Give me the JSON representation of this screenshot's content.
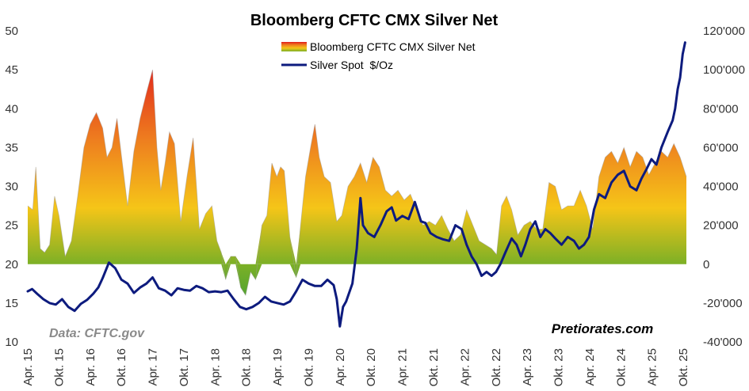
{
  "chart_data": {
    "type": "area",
    "title": "Bloomberg CFTC CMX Silver Net",
    "xlabel": "",
    "ylabel_left": "",
    "ylabel_right": "",
    "source": "Data: CFTC.gov",
    "brand": "Pretiorates.com",
    "legend_position": "top-center",
    "grid": false,
    "x_range": [
      2015.25,
      2025.8
    ],
    "left_axis": {
      "min": 10,
      "max": 50,
      "step": 5,
      "tick_labels": [
        "10",
        "15",
        "20",
        "25",
        "30",
        "35",
        "40",
        "45",
        "50"
      ]
    },
    "right_axis": {
      "min": -40000,
      "max": 120000,
      "step": 20000,
      "tick_labels": [
        "-40'000",
        "-20'000",
        "0",
        "20'000",
        "40'000",
        "60'000",
        "80'000",
        "100'000",
        "120'000"
      ]
    },
    "categories": [
      "Apr. 15",
      "Okt. 15",
      "Apr. 16",
      "Okt. 16",
      "Apr. 17",
      "Okt. 17",
      "Apr. 18",
      "Okt. 18",
      "Apr. 19",
      "Okt. 19",
      "Apr. 20",
      "Okt. 20",
      "Apr. 21",
      "Okt. 21",
      "Apr. 22",
      "Okt. 22",
      "Apr. 23",
      "Okt. 23",
      "Apr. 24",
      "Okt. 24",
      "Apr. 25",
      "Okt. 25"
    ],
    "category_positions": [
      2015.25,
      2015.75,
      2016.25,
      2016.75,
      2017.25,
      2017.75,
      2018.25,
      2018.75,
      2019.25,
      2019.75,
      2020.25,
      2020.75,
      2021.25,
      2021.75,
      2022.25,
      2022.75,
      2023.25,
      2023.75,
      2024.25,
      2024.75,
      2025.25,
      2025.75
    ],
    "series": [
      {
        "name": "Bloomberg CFTC CMX Silver Net",
        "type": "area",
        "axis": "right",
        "colors": [
          "#7cb026",
          "#f5c518",
          "#ee7d1f",
          "#e01b1b"
        ],
        "x": [
          2015.25,
          2015.33,
          2015.38,
          2015.45,
          2015.52,
          2015.6,
          2015.68,
          2015.75,
          2015.85,
          2015.95,
          2016.05,
          2016.15,
          2016.25,
          2016.35,
          2016.45,
          2016.52,
          2016.6,
          2016.68,
          2016.75,
          2016.85,
          2016.95,
          2017.05,
          2017.15,
          2017.25,
          2017.32,
          2017.38,
          2017.45,
          2017.52,
          2017.6,
          2017.7,
          2017.8,
          2017.9,
          2018.0,
          2018.1,
          2018.2,
          2018.28,
          2018.35,
          2018.42,
          2018.5,
          2018.58,
          2018.66,
          2018.74,
          2018.82,
          2018.9,
          2019.0,
          2019.08,
          2019.16,
          2019.24,
          2019.3,
          2019.36,
          2019.45,
          2019.55,
          2019.62,
          2019.7,
          2019.78,
          2019.85,
          2019.92,
          2020.0,
          2020.1,
          2020.2,
          2020.28,
          2020.38,
          2020.48,
          2020.58,
          2020.68,
          2020.78,
          2020.88,
          2020.98,
          2021.08,
          2021.18,
          2021.28,
          2021.38,
          2021.48,
          2021.58,
          2021.68,
          2021.78,
          2021.88,
          2021.98,
          2022.08,
          2022.18,
          2022.28,
          2022.38,
          2022.48,
          2022.58,
          2022.68,
          2022.76,
          2022.84,
          2022.92,
          2023.0,
          2023.1,
          2023.2,
          2023.3,
          2023.4,
          2023.5,
          2023.6,
          2023.7,
          2023.8,
          2023.9,
          2024.0,
          2024.1,
          2024.2,
          2024.3,
          2024.4,
          2024.5,
          2024.6,
          2024.7,
          2024.8,
          2024.9,
          2025.0,
          2025.1,
          2025.2,
          2025.3,
          2025.4,
          2025.5,
          2025.6,
          2025.7,
          2025.8
        ],
        "values": [
          30000,
          28000,
          50000,
          8000,
          6000,
          10000,
          35000,
          25000,
          4000,
          12000,
          35000,
          60000,
          72000,
          78000,
          70000,
          55000,
          60000,
          75000,
          56000,
          30000,
          58000,
          75000,
          88000,
          100000,
          60000,
          38000,
          52000,
          68000,
          62000,
          22000,
          45000,
          65000,
          18000,
          26000,
          30000,
          12000,
          6000,
          -8000,
          4000,
          4000,
          -12000,
          -16000,
          -4000,
          -8000,
          20000,
          25000,
          52000,
          45000,
          50000,
          48000,
          14000,
          -7000,
          20000,
          45000,
          60000,
          72000,
          55000,
          45000,
          42000,
          22000,
          25000,
          40000,
          45000,
          52000,
          42000,
          55000,
          50000,
          38000,
          35000,
          38000,
          33000,
          36000,
          28000,
          20000,
          22000,
          20000,
          25000,
          18000,
          12000,
          15000,
          28000,
          20000,
          12000,
          10000,
          8000,
          5000,
          30000,
          35000,
          28000,
          15000,
          20000,
          22000,
          18000,
          18000,
          42000,
          40000,
          28000,
          30000,
          30000,
          38000,
          30000,
          18000,
          45000,
          55000,
          58000,
          52000,
          60000,
          50000,
          58000,
          55000,
          46000,
          52000,
          58000,
          55000,
          62000,
          55000,
          45000
        ]
      },
      {
        "name": "Silver Spot  $/Oz",
        "type": "line",
        "axis": "left",
        "color": "#0d1b7e",
        "x": [
          2015.25,
          2015.32,
          2015.4,
          2015.5,
          2015.6,
          2015.7,
          2015.8,
          2015.9,
          2016.0,
          2016.1,
          2016.2,
          2016.3,
          2016.38,
          2016.45,
          2016.55,
          2016.65,
          2016.75,
          2016.85,
          2016.95,
          2017.05,
          2017.15,
          2017.25,
          2017.35,
          2017.45,
          2017.55,
          2017.65,
          2017.75,
          2017.85,
          2017.95,
          2018.05,
          2018.15,
          2018.25,
          2018.35,
          2018.45,
          2018.55,
          2018.65,
          2018.75,
          2018.85,
          2018.95,
          2019.05,
          2019.15,
          2019.25,
          2019.35,
          2019.45,
          2019.55,
          2019.65,
          2019.75,
          2019.85,
          2019.95,
          2020.05,
          2020.15,
          2020.2,
          2020.25,
          2020.3,
          2020.35,
          2020.45,
          2020.52,
          2020.58,
          2020.62,
          2020.7,
          2020.8,
          2020.9,
          2021.0,
          2021.08,
          2021.15,
          2021.25,
          2021.35,
          2021.45,
          2021.55,
          2021.62,
          2021.7,
          2021.8,
          2021.9,
          2022.0,
          2022.1,
          2022.2,
          2022.28,
          2022.36,
          2022.44,
          2022.52,
          2022.6,
          2022.68,
          2022.75,
          2022.82,
          2022.9,
          2023.0,
          2023.08,
          2023.15,
          2023.22,
          2023.3,
          2023.38,
          2023.46,
          2023.54,
          2023.62,
          2023.7,
          2023.8,
          2023.9,
          2024.0,
          2024.08,
          2024.16,
          2024.24,
          2024.32,
          2024.4,
          2024.5,
          2024.6,
          2024.7,
          2024.8,
          2024.9,
          2025.0,
          2025.08,
          2025.16,
          2025.24,
          2025.32,
          2025.4,
          2025.5,
          2025.58,
          2025.62,
          2025.66,
          2025.7,
          2025.74,
          2025.78
        ],
        "values": [
          16.5,
          16.8,
          16.2,
          15.5,
          15.0,
          14.8,
          15.5,
          14.5,
          14.0,
          14.9,
          15.4,
          16.2,
          17.0,
          18.2,
          20.2,
          19.5,
          18.0,
          17.5,
          16.3,
          17.0,
          17.5,
          18.3,
          16.9,
          16.6,
          16.0,
          16.9,
          16.7,
          16.6,
          17.2,
          16.9,
          16.4,
          16.5,
          16.4,
          16.6,
          15.5,
          14.5,
          14.2,
          14.5,
          15.0,
          15.8,
          15.2,
          15.0,
          14.8,
          15.2,
          16.5,
          18.0,
          17.5,
          17.2,
          17.2,
          18.0,
          17.3,
          15.5,
          12.0,
          14.5,
          15.2,
          17.5,
          22.0,
          28.5,
          25.0,
          24.0,
          23.5,
          25.0,
          26.8,
          27.3,
          25.6,
          26.2,
          25.8,
          28.0,
          25.5,
          25.3,
          24.0,
          23.5,
          23.2,
          23.0,
          25.0,
          24.5,
          22.5,
          21.0,
          20.0,
          18.5,
          19.0,
          18.5,
          19.0,
          20.0,
          21.5,
          23.3,
          22.5,
          21.0,
          22.5,
          24.5,
          25.5,
          23.5,
          24.5,
          24.0,
          23.3,
          22.5,
          23.5,
          23.0,
          22.0,
          22.5,
          23.5,
          27.0,
          29.0,
          28.5,
          30.5,
          31.5,
          32.0,
          30.0,
          29.5,
          31.0,
          32.2,
          33.5,
          32.8,
          35.0,
          37.0,
          38.5,
          40.0,
          42.5,
          44.0,
          47.0,
          48.5
        ]
      }
    ]
  }
}
